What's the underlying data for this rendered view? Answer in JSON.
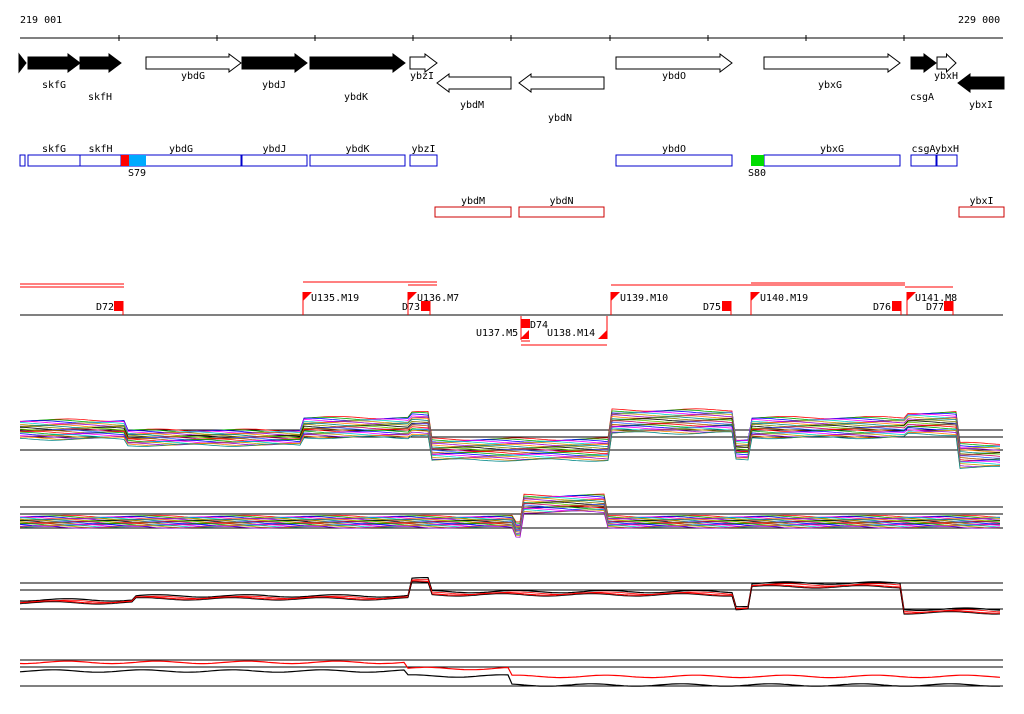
{
  "ruler": {
    "start_label": "219 001",
    "end_label": "229 000"
  },
  "genes_top": [
    {
      "name": "skfG",
      "strand": "+",
      "filled": true
    },
    {
      "name": "skfH",
      "strand": "+",
      "filled": true
    },
    {
      "name": "ybdG",
      "strand": "+",
      "filled": false
    },
    {
      "name": "ybdJ",
      "strand": "+",
      "filled": true
    },
    {
      "name": "ybdK",
      "strand": "+",
      "filled": true
    },
    {
      "name": "ybzI",
      "strand": "+",
      "filled": false
    },
    {
      "name": "ybdM",
      "strand": "-",
      "filled": false
    },
    {
      "name": "ybdN",
      "strand": "-",
      "filled": false
    },
    {
      "name": "ybdO",
      "strand": "+",
      "filled": false
    },
    {
      "name": "ybxG",
      "strand": "+",
      "filled": false
    },
    {
      "name": "csgA",
      "strand": "+",
      "filled": true
    },
    {
      "name": "ybxH",
      "strand": "+",
      "filled": false
    },
    {
      "name": "ybxI",
      "strand": "-",
      "filled": true
    }
  ],
  "genes_plus_boxes": [
    "skfG",
    "skfH",
    "ybdG",
    "ybdJ",
    "ybdK",
    "ybzI",
    "ybdO",
    "ybxG",
    "csgA",
    "ybxH"
  ],
  "genes_minus_boxes": [
    "ybdM",
    "ybdN",
    "ybxI"
  ],
  "markers": [
    "S79",
    "S80"
  ],
  "features_upper": [
    "D72",
    "U135.M19",
    "D73",
    "U136.M7",
    "U139.M10",
    "D75",
    "U140.M19",
    "D76",
    "U141.M8",
    "D77"
  ],
  "features_lower": [
    "D74",
    "U137.M5",
    "U138.M14"
  ],
  "colors": {
    "gene_box": "#0000cc",
    "minus_box": "#cc0000",
    "feature": "#ff0000",
    "marker_red": "#ff0000",
    "marker_blue": "#00aaff",
    "marker_green": "#00dd00"
  }
}
